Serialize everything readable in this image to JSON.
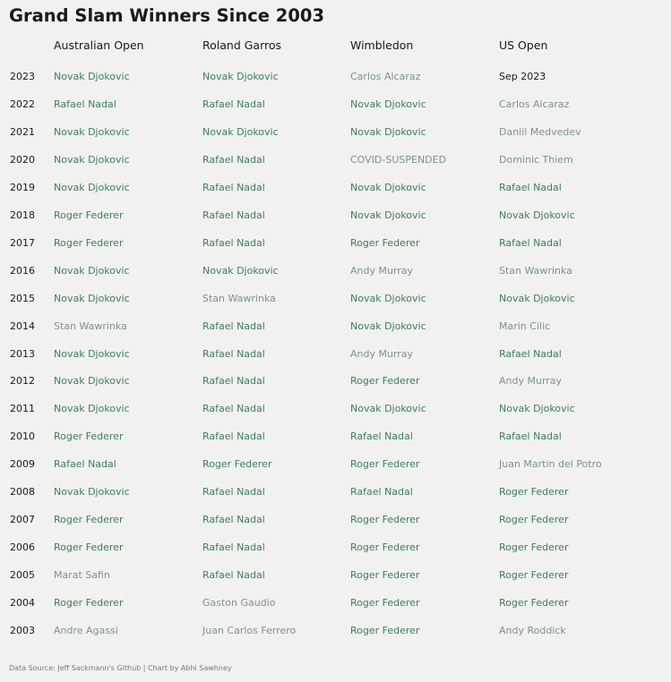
{
  "title": "Grand Slam Winners Since 2003",
  "footer": "Data Source: Jeff Sackmann's Github | Chart by Abhi Sawhney",
  "colors": {
    "background": "#f1f1ef",
    "multi_winner": "#3e7d5e",
    "single_winner": "#7d9489",
    "plain_text": "#1a1a1a"
  },
  "chart_data": {
    "type": "table",
    "title": "Grand Slam Winners Since 2003",
    "columns": [
      "Australian Open",
      "Roland Garros",
      "Wimbledon",
      "US Open"
    ],
    "rows": [
      {
        "year": "2023",
        "cells": [
          {
            "text": "Novak Djokovic",
            "style": "multi"
          },
          {
            "text": "Novak Djokovic",
            "style": "multi"
          },
          {
            "text": "Carlos Alcaraz",
            "style": "single"
          },
          {
            "text": "Sep 2023",
            "style": "plain"
          }
        ]
      },
      {
        "year": "2022",
        "cells": [
          {
            "text": "Rafael Nadal",
            "style": "multi"
          },
          {
            "text": "Rafael Nadal",
            "style": "multi"
          },
          {
            "text": "Novak Djokovic",
            "style": "multi"
          },
          {
            "text": "Carlos Alcaraz",
            "style": "single"
          }
        ]
      },
      {
        "year": "2021",
        "cells": [
          {
            "text": "Novak Djokovic",
            "style": "multi"
          },
          {
            "text": "Novak Djokovic",
            "style": "multi"
          },
          {
            "text": "Novak Djokovic",
            "style": "multi"
          },
          {
            "text": "Daniil Medvedev",
            "style": "single"
          }
        ]
      },
      {
        "year": "2020",
        "cells": [
          {
            "text": "Novak Djokovic",
            "style": "multi"
          },
          {
            "text": "Rafael Nadal",
            "style": "multi"
          },
          {
            "text": "COVID-SUSPENDED",
            "style": "single"
          },
          {
            "text": "Dominic Thiem",
            "style": "single"
          }
        ]
      },
      {
        "year": "2019",
        "cells": [
          {
            "text": "Novak Djokovic",
            "style": "multi"
          },
          {
            "text": "Rafael Nadal",
            "style": "multi"
          },
          {
            "text": "Novak Djokovic",
            "style": "multi"
          },
          {
            "text": "Rafael Nadal",
            "style": "multi"
          }
        ]
      },
      {
        "year": "2018",
        "cells": [
          {
            "text": "Roger Federer",
            "style": "multi"
          },
          {
            "text": "Rafael Nadal",
            "style": "multi"
          },
          {
            "text": "Novak Djokovic",
            "style": "multi"
          },
          {
            "text": "Novak Djokovic",
            "style": "multi"
          }
        ]
      },
      {
        "year": "2017",
        "cells": [
          {
            "text": "Roger Federer",
            "style": "multi"
          },
          {
            "text": "Rafael Nadal",
            "style": "multi"
          },
          {
            "text": "Roger Federer",
            "style": "multi"
          },
          {
            "text": "Rafael Nadal",
            "style": "multi"
          }
        ]
      },
      {
        "year": "2016",
        "cells": [
          {
            "text": "Novak Djokovic",
            "style": "multi"
          },
          {
            "text": "Novak Djokovic",
            "style": "multi"
          },
          {
            "text": "Andy Murray",
            "style": "single"
          },
          {
            "text": "Stan Wawrinka",
            "style": "single"
          }
        ]
      },
      {
        "year": "2015",
        "cells": [
          {
            "text": "Novak Djokovic",
            "style": "multi"
          },
          {
            "text": "Stan Wawrinka",
            "style": "single"
          },
          {
            "text": "Novak Djokovic",
            "style": "multi"
          },
          {
            "text": "Novak Djokovic",
            "style": "multi"
          }
        ]
      },
      {
        "year": "2014",
        "cells": [
          {
            "text": "Stan Wawrinka",
            "style": "single"
          },
          {
            "text": "Rafael Nadal",
            "style": "multi"
          },
          {
            "text": "Novak Djokovic",
            "style": "multi"
          },
          {
            "text": "Marin Cilic",
            "style": "single"
          }
        ]
      },
      {
        "year": "2013",
        "cells": [
          {
            "text": "Novak Djokovic",
            "style": "multi"
          },
          {
            "text": "Rafael Nadal",
            "style": "multi"
          },
          {
            "text": "Andy Murray",
            "style": "single"
          },
          {
            "text": "Rafael Nadal",
            "style": "multi"
          }
        ]
      },
      {
        "year": "2012",
        "cells": [
          {
            "text": "Novak Djokovic",
            "style": "multi"
          },
          {
            "text": "Rafael Nadal",
            "style": "multi"
          },
          {
            "text": "Roger Federer",
            "style": "multi"
          },
          {
            "text": "Andy Murray",
            "style": "single"
          }
        ]
      },
      {
        "year": "2011",
        "cells": [
          {
            "text": "Novak Djokovic",
            "style": "multi"
          },
          {
            "text": "Rafael Nadal",
            "style": "multi"
          },
          {
            "text": "Novak Djokovic",
            "style": "multi"
          },
          {
            "text": "Novak Djokovic",
            "style": "multi"
          }
        ]
      },
      {
        "year": "2010",
        "cells": [
          {
            "text": "Roger Federer",
            "style": "multi"
          },
          {
            "text": "Rafael Nadal",
            "style": "multi"
          },
          {
            "text": "Rafael Nadal",
            "style": "multi"
          },
          {
            "text": "Rafael Nadal",
            "style": "multi"
          }
        ]
      },
      {
        "year": "2009",
        "cells": [
          {
            "text": "Rafael Nadal",
            "style": "multi"
          },
          {
            "text": "Roger Federer",
            "style": "multi"
          },
          {
            "text": "Roger Federer",
            "style": "multi"
          },
          {
            "text": "Juan Martin del Potro",
            "style": "single"
          }
        ]
      },
      {
        "year": "2008",
        "cells": [
          {
            "text": "Novak Djokovic",
            "style": "multi"
          },
          {
            "text": "Rafael Nadal",
            "style": "multi"
          },
          {
            "text": "Rafael Nadal",
            "style": "multi"
          },
          {
            "text": "Roger Federer",
            "style": "multi"
          }
        ]
      },
      {
        "year": "2007",
        "cells": [
          {
            "text": "Roger Federer",
            "style": "multi"
          },
          {
            "text": "Rafael Nadal",
            "style": "multi"
          },
          {
            "text": "Roger Federer",
            "style": "multi"
          },
          {
            "text": "Roger Federer",
            "style": "multi"
          }
        ]
      },
      {
        "year": "2006",
        "cells": [
          {
            "text": "Roger Federer",
            "style": "multi"
          },
          {
            "text": "Rafael Nadal",
            "style": "multi"
          },
          {
            "text": "Roger Federer",
            "style": "multi"
          },
          {
            "text": "Roger Federer",
            "style": "multi"
          }
        ]
      },
      {
        "year": "2005",
        "cells": [
          {
            "text": "Marat Safin",
            "style": "single"
          },
          {
            "text": "Rafael Nadal",
            "style": "multi"
          },
          {
            "text": "Roger Federer",
            "style": "multi"
          },
          {
            "text": "Roger Federer",
            "style": "multi"
          }
        ]
      },
      {
        "year": "2004",
        "cells": [
          {
            "text": "Roger Federer",
            "style": "multi"
          },
          {
            "text": "Gaston Gaudio",
            "style": "single"
          },
          {
            "text": "Roger Federer",
            "style": "multi"
          },
          {
            "text": "Roger Federer",
            "style": "multi"
          }
        ]
      },
      {
        "year": "2003",
        "cells": [
          {
            "text": "Andre Agassi",
            "style": "single"
          },
          {
            "text": "Juan Carlos Ferrero",
            "style": "single"
          },
          {
            "text": "Roger Federer",
            "style": "multi"
          },
          {
            "text": "Andy Roddick",
            "style": "single"
          }
        ]
      }
    ]
  }
}
